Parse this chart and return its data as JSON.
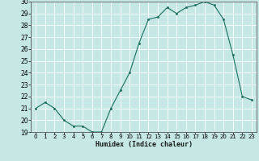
{
  "x": [
    0,
    1,
    2,
    3,
    4,
    5,
    6,
    7,
    8,
    9,
    10,
    11,
    12,
    13,
    14,
    15,
    16,
    17,
    18,
    19,
    20,
    21,
    22,
    23
  ],
  "y": [
    21.0,
    21.5,
    21.0,
    20.0,
    19.5,
    19.5,
    19.0,
    19.0,
    21.0,
    22.5,
    24.0,
    26.5,
    28.5,
    28.7,
    29.5,
    29.0,
    29.5,
    29.7,
    30.0,
    29.7,
    28.5,
    25.5,
    22.0,
    21.7
  ],
  "xlabel": "Humidex (Indice chaleur)",
  "ylabel": "",
  "title": "",
  "bg_color": "#c5e8e5",
  "grid_color": "#ffffff",
  "line_color": "#1a6e5e",
  "marker_color": "#1a6e5e",
  "ylim": [
    19,
    30
  ],
  "xlim": [
    -0.5,
    23.5
  ],
  "yticks": [
    19,
    20,
    21,
    22,
    23,
    24,
    25,
    26,
    27,
    28,
    29,
    30
  ],
  "xticks": [
    0,
    1,
    2,
    3,
    4,
    5,
    6,
    7,
    8,
    9,
    10,
    11,
    12,
    13,
    14,
    15,
    16,
    17,
    18,
    19,
    20,
    21,
    22,
    23
  ],
  "xtick_labels": [
    "0",
    "1",
    "2",
    "3",
    "4",
    "5",
    "6",
    "7",
    "8",
    "9",
    "10",
    "11",
    "12",
    "13",
    "14",
    "15",
    "16",
    "17",
    "18",
    "19",
    "20",
    "21",
    "22",
    "23"
  ]
}
